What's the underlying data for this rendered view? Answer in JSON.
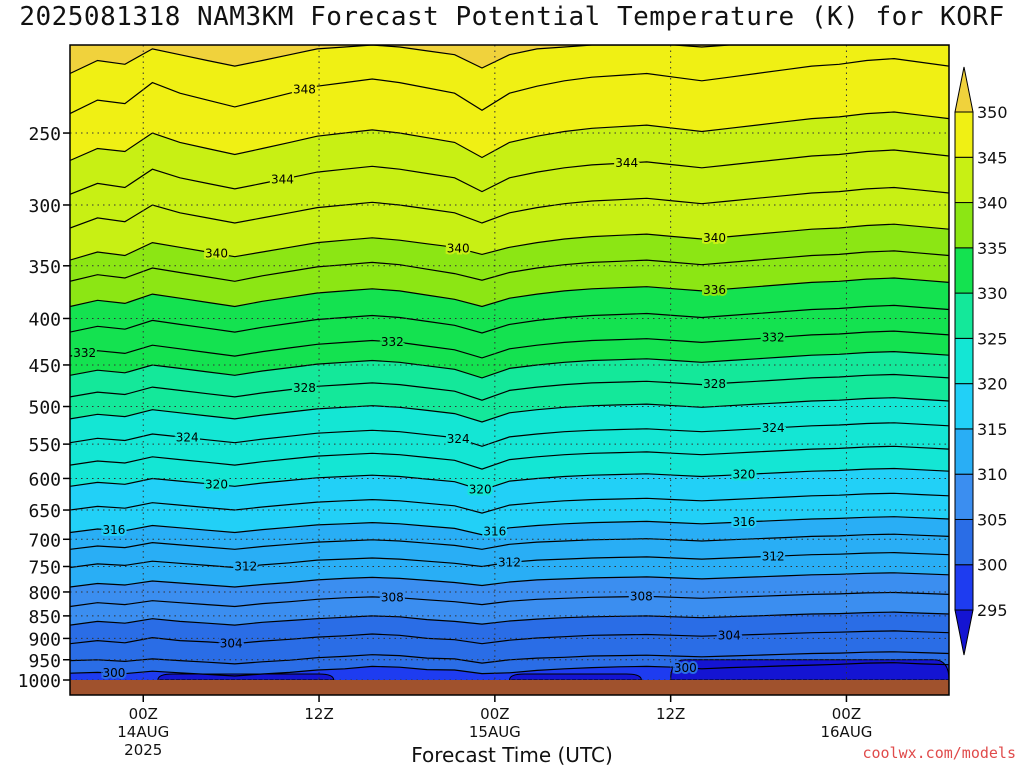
{
  "chart_data": {
    "type": "heatmap",
    "title": "2025081318 NAM3KM Forecast Potential Temperature (K) for KORF",
    "xlabel": "Forecast Time (UTC)",
    "ylabel": "",
    "y_axis": {
      "scale": "log",
      "reversed": true,
      "ylim": [
        200,
        1000
      ],
      "ticks": [
        250,
        300,
        350,
        400,
        450,
        500,
        550,
        600,
        650,
        700,
        750,
        800,
        850,
        900,
        950,
        1000
      ]
    },
    "x_axis": {
      "range_hours": [
        -5,
        55
      ],
      "ticks": [
        {
          "hour": 0,
          "lines": [
            "00Z",
            "14AUG",
            "2025"
          ]
        },
        {
          "hour": 12,
          "lines": [
            "12Z"
          ]
        },
        {
          "hour": 24,
          "lines": [
            "00Z",
            "15AUG"
          ]
        },
        {
          "hour": 36,
          "lines": [
            "12Z"
          ]
        },
        {
          "hour": 48,
          "lines": [
            "00Z",
            "16AUG"
          ]
        }
      ]
    },
    "grid": true,
    "colorbar": {
      "unit": "K",
      "levels": [
        295,
        300,
        305,
        310,
        315,
        320,
        325,
        330,
        335,
        340,
        345,
        350
      ],
      "colors": [
        "#1414d2",
        "#1e3cf0",
        "#2a6de6",
        "#3b8ef0",
        "#29aef5",
        "#22d0f7",
        "#14e6d4",
        "#14e89a",
        "#14e250",
        "#8ce614",
        "#c8f014",
        "#f0f014",
        "#f0d23c"
      ]
    },
    "isentropes": [
      {
        "theta": 300,
        "p": [
          983,
          981,
          984,
          978,
          982,
          986,
          990,
          985,
          981,
          975,
          972,
          966,
          968,
          974,
          975,
          984,
          982,
          976,
          972,
          969,
          967,
          966,
          968,
          972,
          969,
          967,
          965,
          963,
          961,
          958,
          957,
          960,
          962
        ]
      },
      {
        "theta": 302,
        "p": [
          952,
          950,
          954,
          948,
          952,
          956,
          960,
          955,
          951,
          945,
          942,
          938,
          940,
          946,
          948,
          958,
          950,
          946,
          944,
          941,
          940,
          939,
          941,
          943,
          941,
          939,
          937,
          935,
          934,
          932,
          931,
          933,
          935
        ]
      },
      {
        "theta": 304,
        "p": [
          912,
          905,
          910,
          898,
          905,
          908,
          912,
          906,
          902,
          897,
          894,
          890,
          893,
          900,
          903,
          912,
          904,
          899,
          896,
          893,
          892,
          891,
          893,
          895,
          893,
          891,
          889,
          887,
          886,
          884,
          883,
          885,
          887
        ]
      },
      {
        "theta": 306,
        "p": [
          870,
          862,
          866,
          856,
          862,
          866,
          870,
          864,
          860,
          856,
          853,
          850,
          852,
          858,
          862,
          868,
          861,
          857,
          854,
          852,
          851,
          850,
          852,
          854,
          852,
          850,
          848,
          846,
          845,
          843,
          842,
          844,
          846
        ]
      },
      {
        "theta": 308,
        "p": [
          830,
          822,
          826,
          818,
          822,
          826,
          830,
          824,
          820,
          815,
          812,
          810,
          812,
          816,
          820,
          826,
          819,
          815,
          813,
          811,
          810,
          809,
          811,
          813,
          811,
          809,
          807,
          805,
          804,
          802,
          801,
          803,
          805
        ]
      },
      {
        "theta": 310,
        "p": [
          790,
          783,
          786,
          778,
          782,
          786,
          790,
          785,
          781,
          776,
          773,
          771,
          773,
          777,
          781,
          787,
          780,
          776,
          774,
          772,
          771,
          770,
          772,
          774,
          772,
          770,
          768,
          766,
          765,
          763,
          762,
          764,
          766
        ]
      },
      {
        "theta": 312,
        "p": [
          752,
          745,
          748,
          740,
          744,
          748,
          752,
          747,
          743,
          738,
          736,
          734,
          736,
          740,
          744,
          750,
          742,
          738,
          736,
          734,
          733,
          732,
          734,
          736,
          734,
          732,
          730,
          728,
          727,
          725,
          724,
          726,
          728
        ]
      },
      {
        "theta": 314,
        "p": [
          718,
          712,
          715,
          706,
          710,
          714,
          718,
          713,
          709,
          705,
          703,
          701,
          703,
          707,
          711,
          718,
          709,
          705,
          703,
          701,
          700,
          699,
          701,
          703,
          701,
          699,
          697,
          695,
          694,
          692,
          691,
          693,
          695
        ]
      },
      {
        "theta": 316,
        "p": [
          688,
          682,
          685,
          676,
          680,
          684,
          688,
          683,
          679,
          675,
          673,
          671,
          673,
          677,
          681,
          692,
          680,
          676,
          673,
          671,
          670,
          669,
          671,
          673,
          671,
          669,
          667,
          665,
          664,
          662,
          661,
          663,
          665
        ]
      },
      {
        "theta": 318,
        "p": [
          650,
          644,
          647,
          638,
          642,
          646,
          650,
          645,
          641,
          637,
          635,
          633,
          635,
          639,
          643,
          655,
          642,
          638,
          635,
          633,
          632,
          631,
          633,
          635,
          633,
          631,
          629,
          627,
          626,
          624,
          623,
          625,
          627
        ]
      },
      {
        "theta": 320,
        "p": [
          612,
          606,
          609,
          600,
          604,
          608,
          612,
          607,
          603,
          599,
          597,
          595,
          597,
          601,
          605,
          618,
          604,
          600,
          597,
          595,
          594,
          593,
          595,
          597,
          595,
          593,
          591,
          589,
          588,
          586,
          585,
          587,
          589
        ]
      },
      {
        "theta": 322,
        "p": [
          580,
          574,
          577,
          568,
          572,
          576,
          580,
          575,
          571,
          567,
          565,
          563,
          565,
          569,
          573,
          586,
          572,
          568,
          565,
          563,
          562,
          561,
          563,
          565,
          563,
          561,
          559,
          557,
          556,
          554,
          553,
          555,
          557
        ]
      },
      {
        "theta": 324,
        "p": [
          548,
          542,
          545,
          536,
          540,
          544,
          548,
          543,
          539,
          535,
          533,
          531,
          533,
          537,
          541,
          553,
          540,
          536,
          533,
          531,
          530,
          529,
          531,
          533,
          531,
          529,
          527,
          525,
          524,
          522,
          521,
          523,
          525
        ]
      },
      {
        "theta": 326,
        "p": [
          516,
          510,
          513,
          504,
          508,
          512,
          516,
          511,
          507,
          503,
          501,
          499,
          501,
          505,
          509,
          520,
          508,
          504,
          501,
          499,
          498,
          497,
          499,
          501,
          499,
          497,
          495,
          493,
          492,
          490,
          489,
          491,
          493
        ]
      },
      {
        "theta": 328,
        "p": [
          488,
          482,
          485,
          476,
          480,
          484,
          488,
          483,
          479,
          475,
          473,
          471,
          473,
          477,
          481,
          492,
          480,
          476,
          473,
          471,
          470,
          469,
          471,
          473,
          471,
          469,
          467,
          465,
          464,
          462,
          461,
          463,
          465
        ]
      },
      {
        "theta": 330,
        "p": [
          462,
          456,
          459,
          450,
          454,
          458,
          462,
          457,
          453,
          449,
          447,
          445,
          447,
          451,
          455,
          465,
          454,
          450,
          447,
          445,
          444,
          443,
          445,
          447,
          445,
          443,
          441,
          439,
          438,
          436,
          435,
          437,
          439
        ]
      },
      {
        "theta": 332,
        "p": [
          440,
          434,
          437,
          428,
          432,
          436,
          440,
          435,
          431,
          427,
          425,
          423,
          425,
          429,
          433,
          442,
          432,
          428,
          425,
          423,
          422,
          421,
          423,
          425,
          423,
          421,
          419,
          417,
          416,
          414,
          413,
          415,
          417
        ]
      },
      {
        "theta": 334,
        "p": [
          414,
          408,
          411,
          402,
          406,
          410,
          414,
          409,
          405,
          401,
          399,
          397,
          399,
          403,
          407,
          415,
          406,
          402,
          399,
          397,
          396,
          395,
          397,
          399,
          397,
          395,
          393,
          391,
          390,
          388,
          387,
          389,
          391
        ]
      },
      {
        "theta": 336,
        "p": [
          388,
          382,
          385,
          376,
          380,
          384,
          388,
          383,
          379,
          375,
          373,
          371,
          373,
          377,
          381,
          388,
          380,
          376,
          373,
          371,
          370,
          369,
          371,
          373,
          371,
          369,
          367,
          365,
          364,
          362,
          361,
          363,
          365
        ]
      },
      {
        "theta": 338,
        "p": [
          364,
          358,
          361,
          352,
          356,
          360,
          364,
          359,
          355,
          351,
          349,
          347,
          349,
          353,
          357,
          363,
          356,
          352,
          349,
          347,
          346,
          345,
          347,
          349,
          347,
          345,
          343,
          341,
          340,
          338,
          337,
          339,
          341
        ]
      },
      {
        "theta": 340,
        "p": [
          345,
          338,
          341,
          330,
          334,
          338,
          342,
          338,
          334,
          330,
          328,
          326,
          328,
          331,
          334,
          340,
          334,
          330,
          327,
          325,
          324,
          323,
          325,
          327,
          325,
          323,
          321,
          319,
          318,
          316,
          315,
          317,
          319
        ]
      },
      {
        "theta": 342,
        "p": [
          318,
          310,
          313,
          300,
          306,
          310,
          314,
          310,
          306,
          302,
          300,
          298,
          300,
          303,
          306,
          314,
          306,
          302,
          299,
          297,
          296,
          295,
          297,
          299,
          297,
          295,
          293,
          291,
          290,
          288,
          287,
          289,
          291
        ]
      },
      {
        "theta": 344,
        "p": [
          292,
          284,
          287,
          274,
          280,
          284,
          288,
          284,
          280,
          276,
          274,
          272,
          274,
          277,
          280,
          290,
          280,
          276,
          273,
          271,
          270,
          269,
          271,
          273,
          271,
          269,
          267,
          265,
          264,
          262,
          261,
          263,
          265
        ]
      },
      {
        "theta": 346,
        "p": [
          268,
          260,
          262,
          250,
          256,
          260,
          264,
          260,
          256,
          252,
          250,
          248,
          250,
          253,
          256,
          266,
          256,
          252,
          249,
          247,
          246,
          245,
          247,
          249,
          247,
          245,
          243,
          241,
          240,
          238,
          237,
          239,
          241
        ]
      },
      {
        "theta": 348,
        "p": [
          238,
          230,
          232,
          220,
          226,
          230,
          234,
          230,
          226,
          222,
          220,
          218,
          220,
          223,
          226,
          236,
          226,
          222,
          219,
          217,
          216,
          215,
          217,
          219,
          217,
          215,
          213,
          211,
          210,
          208,
          207,
          209,
          211
        ]
      },
      {
        "theta": 350,
        "p": [
          215,
          208,
          210,
          202,
          205,
          208,
          211,
          208,
          205,
          202,
          201,
          200,
          201,
          203,
          205,
          212,
          205,
          202,
          201,
          200,
          200,
          200,
          200,
          201,
          200,
          200,
          200,
          200,
          200,
          200,
          200,
          200,
          200
        ]
      }
    ],
    "contour_labels": [
      {
        "theta": 348,
        "hour": 11
      },
      {
        "theta": 344,
        "hour": 9.5
      },
      {
        "theta": 344,
        "hour": 33
      },
      {
        "theta": 340,
        "hour": 5
      },
      {
        "theta": 340,
        "hour": 21.5
      },
      {
        "theta": 340,
        "hour": 39
      },
      {
        "theta": 336,
        "hour": 39
      },
      {
        "theta": 332,
        "hour": -4
      },
      {
        "theta": 332,
        "hour": 17
      },
      {
        "theta": 332,
        "hour": 43
      },
      {
        "theta": 328,
        "hour": 11
      },
      {
        "theta": 328,
        "hour": 39
      },
      {
        "theta": 324,
        "hour": 3
      },
      {
        "theta": 324,
        "hour": 21.5
      },
      {
        "theta": 324,
        "hour": 43
      },
      {
        "theta": 320,
        "hour": 5
      },
      {
        "theta": 320,
        "hour": 23
      },
      {
        "theta": 320,
        "hour": 41
      },
      {
        "theta": 316,
        "hour": -2
      },
      {
        "theta": 316,
        "hour": 24
      },
      {
        "theta": 316,
        "hour": 41
      },
      {
        "theta": 312,
        "hour": 7
      },
      {
        "theta": 312,
        "hour": 25
      },
      {
        "theta": 312,
        "hour": 43
      },
      {
        "theta": 308,
        "hour": 17
      },
      {
        "theta": 308,
        "hour": 34
      },
      {
        "theta": 304,
        "hour": 6
      },
      {
        "theta": 304,
        "hour": 40
      },
      {
        "theta": 300,
        "hour": -2
      },
      {
        "theta": 300,
        "hour": 37
      }
    ],
    "cold_pockets_296": [
      {
        "hour_start": 1,
        "hour_end": 13,
        "p_top": 985
      },
      {
        "hour_start": 25,
        "hour_end": 34,
        "p_top": 985
      },
      {
        "hour_start": 36,
        "hour_end": 55,
        "p_top": 950
      }
    ],
    "ground_color": "#a0522d"
  },
  "credit": "coolwx.com/models"
}
